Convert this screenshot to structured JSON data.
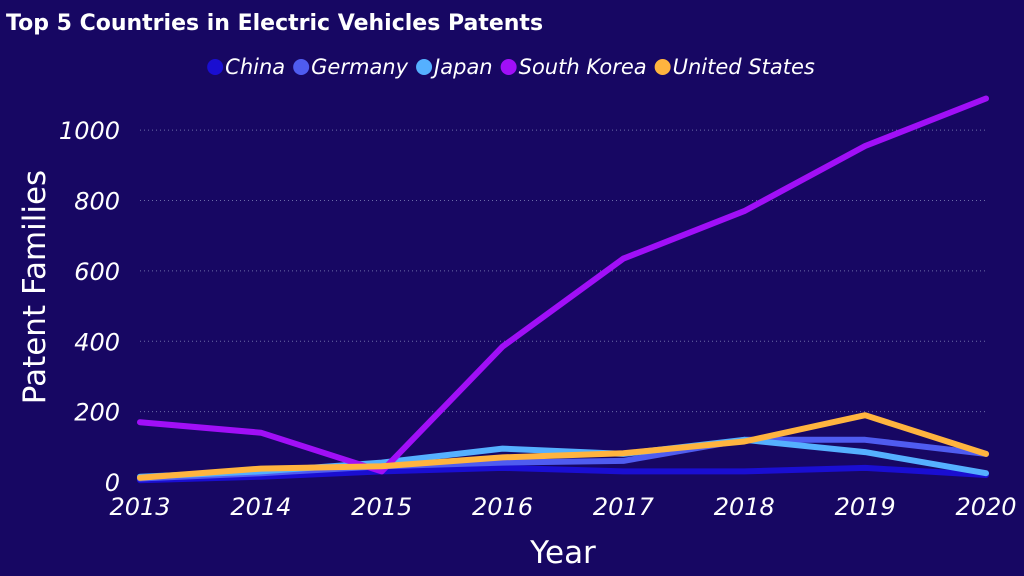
{
  "chart_data": {
    "type": "line",
    "title": "Top 5 Countries in Electric Vehicles Patents",
    "xlabel": "Year",
    "ylabel": "Patent Families",
    "x": [
      "2013",
      "2014",
      "2015",
      "2016",
      "2017",
      "2018",
      "2019",
      "2020"
    ],
    "ylim": [
      0,
      1100
    ],
    "yticks": [
      "0",
      "200",
      "400",
      "600",
      "800",
      "1000"
    ],
    "grid": true,
    "legend_position": "top",
    "series": [
      {
        "name": "China",
        "color": "#1a0ed1",
        "values": [
          5,
          15,
          30,
          40,
          30,
          30,
          40,
          20
        ]
      },
      {
        "name": "Germany",
        "color": "#4f5cf0",
        "values": [
          10,
          25,
          45,
          55,
          60,
          120,
          120,
          80
        ]
      },
      {
        "name": "Japan",
        "color": "#55b0ff",
        "values": [
          15,
          30,
          55,
          95,
          80,
          120,
          85,
          25
        ]
      },
      {
        "name": "South Korea",
        "color": "#a10ff7",
        "values": [
          170,
          140,
          30,
          385,
          635,
          770,
          955,
          1090
        ]
      },
      {
        "name": "United States",
        "color": "#ffb43f",
        "values": [
          12,
          38,
          45,
          70,
          82,
          115,
          190,
          80
        ]
      }
    ]
  }
}
